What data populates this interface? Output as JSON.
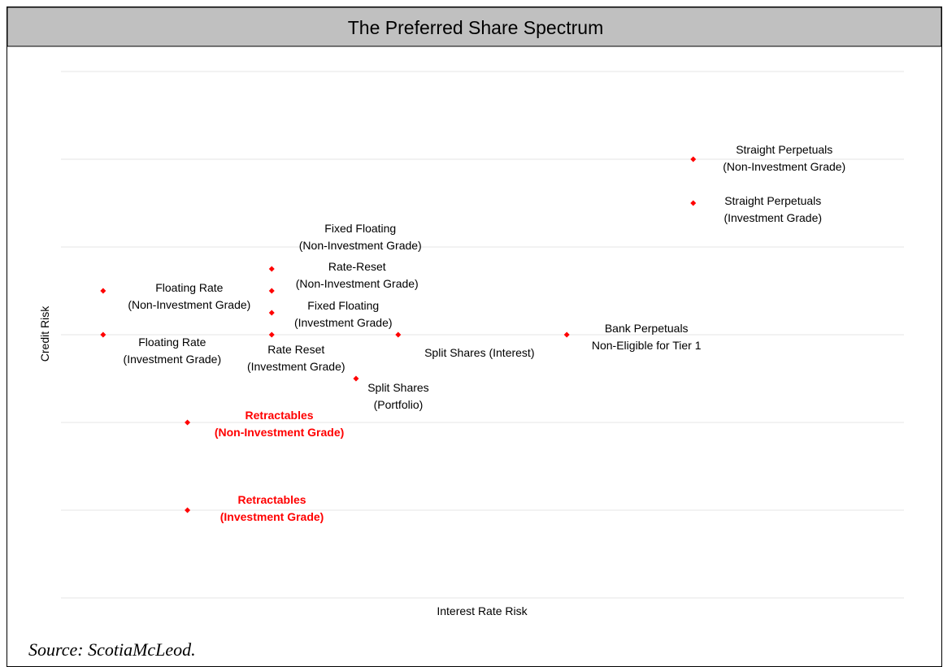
{
  "chart_data": {
    "type": "scatter",
    "title": "The Preferred Share Spectrum",
    "x_label": "Interest Rate Risk",
    "y_label": "Credit Risk",
    "source": "Source: ScotiaMcLeod.",
    "xlim": [
      0,
      10
    ],
    "ylim": [
      0,
      6
    ],
    "yticks": [
      0,
      1,
      2,
      3,
      4,
      5,
      6
    ],
    "grid": true,
    "color": "#ff0000",
    "points": [
      {
        "label": [
          "Straight Perpetuals",
          "(Non-Investment Grade)"
        ],
        "x": 7.5,
        "y": 5.0
      },
      {
        "label": [
          "Straight Perpetuals",
          "(Investment Grade)"
        ],
        "x": 7.5,
        "y": 4.5
      },
      {
        "label": [
          "Fixed Floating",
          "(Non-Investment Grade)"
        ],
        "x": 2.5,
        "y": 3.75
      },
      {
        "label": [
          "Rate-Reset",
          "(Non-Investment Grade)"
        ],
        "x": 2.5,
        "y": 3.5
      },
      {
        "label": [
          "Floating Rate",
          "(Non-Investment Grade)"
        ],
        "x": 0.5,
        "y": 3.5
      },
      {
        "label": [
          "Fixed Floating",
          "(Investment Grade)"
        ],
        "x": 2.5,
        "y": 3.25
      },
      {
        "label": [
          "Floating Rate",
          "(Investment Grade)"
        ],
        "x": 0.5,
        "y": 3.0
      },
      {
        "label": [
          "Rate Reset",
          "(Investment Grade)"
        ],
        "x": 2.5,
        "y": 3.0
      },
      {
        "label": [
          "Split Shares (Interest)"
        ],
        "x": 4.0,
        "y": 3.0
      },
      {
        "label": [
          "Bank Perpetuals",
          "Non-Eligible for Tier 1"
        ],
        "x": 6.0,
        "y": 3.0
      },
      {
        "label": [
          "Split Shares",
          "(Portfolio)"
        ],
        "x": 3.5,
        "y": 2.5
      },
      {
        "label": [
          "Retractables",
          "(Non-Investment Grade)"
        ],
        "x": 1.5,
        "y": 2.0,
        "label_color": "#ff0000"
      },
      {
        "label": [
          "Retractables",
          "(Investment Grade)"
        ],
        "x": 1.5,
        "y": 1.0,
        "label_color": "#ff0000"
      }
    ]
  }
}
